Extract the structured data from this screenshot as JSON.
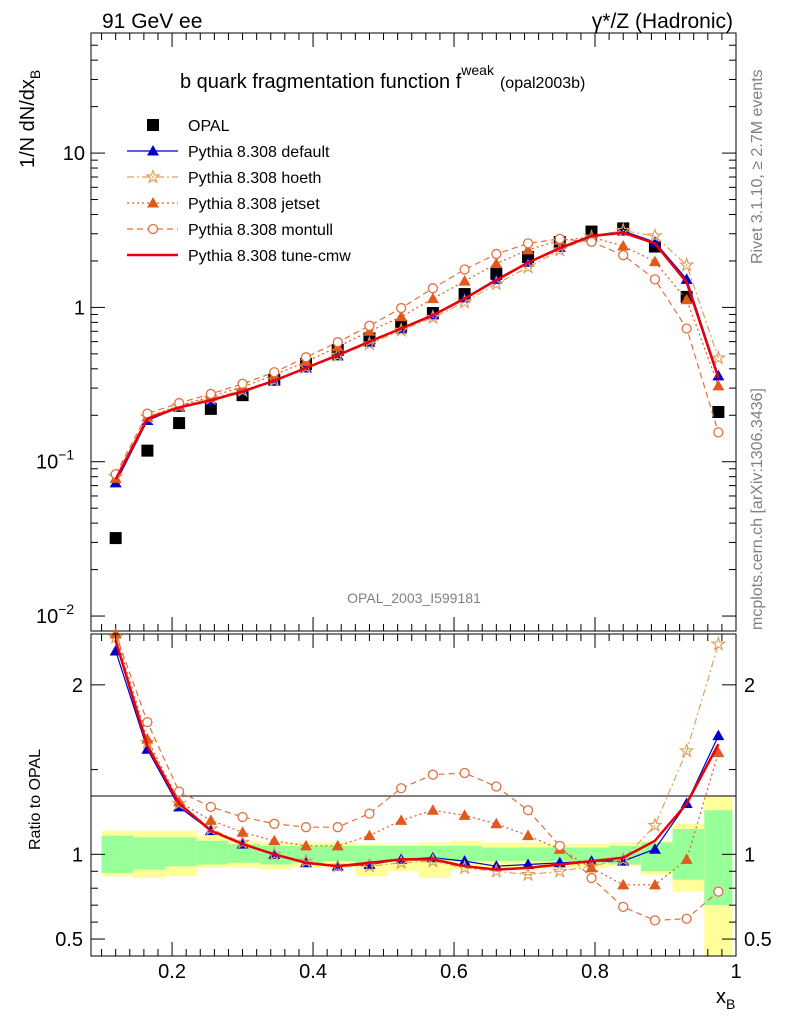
{
  "header": {
    "left": "91 GeV ee",
    "right": "γ*/Z (Hadronic)"
  },
  "side_labels": {
    "rivet": "Rivet 3.1.10, ≥ 2.7M events",
    "mcplots": "mcplots.cern.ch [arXiv:1306.3436]"
  },
  "chart_data": [
    {
      "type": "line",
      "title": "b quark fragmentation function f",
      "title_sup": "weak",
      "title_suffix": "(opal2003b)",
      "watermark": "OPAL_2003_I599181",
      "ylabel": "1/N dN/dx",
      "ylabel_sub": "B",
      "xlim": [
        0.085,
        1.0
      ],
      "ylim": [
        0.008,
        60
      ],
      "yscale": "log",
      "yticks": [
        {
          "value": 0.01,
          "label": "10",
          "sup": "−2"
        },
        {
          "value": 0.1,
          "label": "10",
          "sup": "−1"
        },
        {
          "value": 1,
          "label": "1",
          "sup": ""
        },
        {
          "value": 10,
          "label": "10",
          "sup": ""
        }
      ],
      "legend_position": "top-left",
      "x": [
        0.12,
        0.165,
        0.21,
        0.255,
        0.3,
        0.345,
        0.39,
        0.435,
        0.48,
        0.525,
        0.57,
        0.615,
        0.66,
        0.705,
        0.75,
        0.795,
        0.84,
        0.885,
        0.93,
        0.975
      ],
      "series": [
        {
          "name": "OPAL",
          "style": "data",
          "color": "#000000",
          "values": [
            0.032,
            0.118,
            0.178,
            0.22,
            0.27,
            0.34,
            0.43,
            0.53,
            0.63,
            0.76,
            0.92,
            1.22,
            1.65,
            2.12,
            2.65,
            3.1,
            3.25,
            2.48,
            1.17,
            0.21
          ]
        },
        {
          "name": "Pythia 8.308 default",
          "style": "solid",
          "marker": "triangle",
          "color": "#0000cc",
          "values": [
            0.073,
            0.185,
            0.225,
            0.25,
            0.285,
            0.335,
            0.405,
            0.485,
            0.595,
            0.725,
            0.895,
            1.15,
            1.52,
            1.96,
            2.45,
            2.9,
            3.12,
            2.65,
            1.52,
            0.36
          ]
        },
        {
          "name": "Pythia 8.308 hoeth",
          "style": "dashdot",
          "marker": "star",
          "color": "#e0a060",
          "values": [
            0.08,
            0.195,
            0.23,
            0.258,
            0.29,
            0.338,
            0.41,
            0.49,
            0.58,
            0.71,
            0.86,
            1.08,
            1.42,
            1.82,
            2.35,
            2.85,
            3.15,
            2.9,
            1.88,
            0.47
          ]
        },
        {
          "name": "Pythia 8.308 jetset",
          "style": "dotted",
          "marker": "triangle",
          "color": "#e05a1e",
          "values": [
            0.078,
            0.195,
            0.23,
            0.265,
            0.305,
            0.365,
            0.445,
            0.555,
            0.7,
            0.87,
            1.14,
            1.48,
            1.92,
            2.36,
            2.72,
            2.85,
            2.5,
            1.98,
            1.12,
            0.31
          ]
        },
        {
          "name": "Pythia 8.308 montull",
          "style": "dashed",
          "marker": "circle",
          "color": "#e07040",
          "values": [
            0.083,
            0.205,
            0.24,
            0.275,
            0.32,
            0.38,
            0.475,
            0.595,
            0.76,
            0.99,
            1.33,
            1.76,
            2.22,
            2.6,
            2.78,
            2.66,
            2.18,
            1.52,
            0.73,
            0.155
          ]
        },
        {
          "name": "Pythia 8.308 tune-cmw",
          "style": "solid",
          "marker": "none",
          "color": "#e8000b",
          "values": [
            0.077,
            0.19,
            0.225,
            0.25,
            0.285,
            0.335,
            0.405,
            0.49,
            0.6,
            0.73,
            0.89,
            1.14,
            1.5,
            1.95,
            2.42,
            2.9,
            3.05,
            2.6,
            1.45,
            0.35
          ]
        }
      ]
    },
    {
      "type": "line",
      "ylabel": "Ratio to OPAL",
      "xlabel": "x",
      "xlabel_sub": "B",
      "xlim": [
        0.085,
        1.0
      ],
      "ylim": [
        0.4,
        2.3
      ],
      "yticks": [
        {
          "value": 0.5,
          "label": "0.5"
        },
        {
          "value": 1,
          "label": "1"
        },
        {
          "value": 2,
          "label": "2"
        }
      ],
      "xticks": [
        {
          "value": 0.2,
          "label": "0.2"
        },
        {
          "value": 0.4,
          "label": "0.4"
        },
        {
          "value": 0.6,
          "label": "0.6"
        },
        {
          "value": 0.8,
          "label": "0.8"
        },
        {
          "value": 1.0,
          "label": "1"
        }
      ],
      "bands": {
        "x_edges": [
          0.1,
          0.145,
          0.19,
          0.235,
          0.28,
          0.325,
          0.37,
          0.415,
          0.46,
          0.505,
          0.55,
          0.595,
          0.64,
          0.685,
          0.73,
          0.775,
          0.82,
          0.865,
          0.91,
          0.955,
          0.995
        ],
        "stat_lo": [
          0.89,
          0.91,
          0.93,
          0.94,
          0.95,
          0.94,
          0.95,
          0.96,
          0.95,
          0.96,
          0.96,
          0.96,
          0.96,
          0.96,
          0.96,
          0.95,
          0.94,
          0.9,
          0.85,
          0.7
        ],
        "stat_hi": [
          1.11,
          1.1,
          1.1,
          1.08,
          1.06,
          1.05,
          1.05,
          1.05,
          1.05,
          1.05,
          1.05,
          1.05,
          1.04,
          1.04,
          1.04,
          1.04,
          1.05,
          1.07,
          1.15,
          1.26
        ],
        "syst_lo": [
          0.87,
          0.86,
          0.87,
          0.92,
          0.92,
          0.91,
          0.92,
          0.92,
          0.87,
          0.9,
          0.86,
          0.91,
          0.91,
          0.91,
          0.92,
          0.92,
          0.93,
          0.88,
          0.78,
          0.35
        ],
        "syst_hi": [
          1.14,
          1.14,
          1.14,
          1.11,
          1.08,
          1.07,
          1.07,
          1.07,
          1.06,
          1.06,
          1.07,
          1.08,
          1.07,
          1.07,
          1.06,
          1.06,
          1.07,
          1.08,
          1.18,
          1.35
        ],
        "stat_color": "#99ff99",
        "syst_color": "#ffff99"
      },
      "x": [
        0.12,
        0.165,
        0.21,
        0.255,
        0.3,
        0.345,
        0.39,
        0.435,
        0.48,
        0.525,
        0.57,
        0.615,
        0.66,
        0.705,
        0.75,
        0.795,
        0.84,
        0.885,
        0.93,
        0.975
      ],
      "series": [
        {
          "name": "Pythia 8.308 default",
          "style": "solid",
          "marker": "triangle",
          "color": "#0000cc",
          "values": [
            2.2,
            1.62,
            1.28,
            1.14,
            1.06,
            1.0,
            0.95,
            0.93,
            0.94,
            0.97,
            0.98,
            0.96,
            0.93,
            0.94,
            0.95,
            0.96,
            0.96,
            1.03,
            1.3,
            1.7
          ]
        },
        {
          "name": "Pythia 8.308 hoeth",
          "style": "dashdot",
          "marker": "star",
          "color": "#e0a060",
          "values": [
            2.28,
            1.66,
            1.3,
            1.15,
            1.07,
            1.0,
            0.96,
            0.93,
            0.93,
            0.95,
            0.96,
            0.92,
            0.9,
            0.88,
            0.9,
            0.93,
            0.97,
            1.17,
            1.61,
            2.24
          ]
        },
        {
          "name": "Pythia 8.308 jetset",
          "style": "dotted",
          "marker": "triangle",
          "color": "#e05a1e",
          "values": [
            2.3,
            1.68,
            1.31,
            1.2,
            1.13,
            1.08,
            1.05,
            1.05,
            1.11,
            1.2,
            1.26,
            1.23,
            1.18,
            1.11,
            1.03,
            0.92,
            0.82,
            0.82,
            0.97,
            1.6
          ]
        },
        {
          "name": "Pythia 8.308 montull",
          "style": "dashed",
          "marker": "circle",
          "color": "#e07040",
          "values": [
            2.38,
            1.78,
            1.37,
            1.28,
            1.22,
            1.18,
            1.16,
            1.16,
            1.24,
            1.39,
            1.47,
            1.48,
            1.4,
            1.26,
            1.05,
            0.86,
            0.69,
            0.61,
            0.62,
            0.78
          ]
        },
        {
          "name": "Pythia 8.308 tune-cmw",
          "style": "solid",
          "marker": "none",
          "color": "#e8000b",
          "values": [
            2.26,
            1.64,
            1.3,
            1.14,
            1.06,
            1.0,
            0.95,
            0.93,
            0.95,
            0.97,
            0.97,
            0.93,
            0.91,
            0.92,
            0.94,
            0.96,
            0.98,
            1.08,
            1.3,
            1.65
          ]
        }
      ]
    }
  ]
}
